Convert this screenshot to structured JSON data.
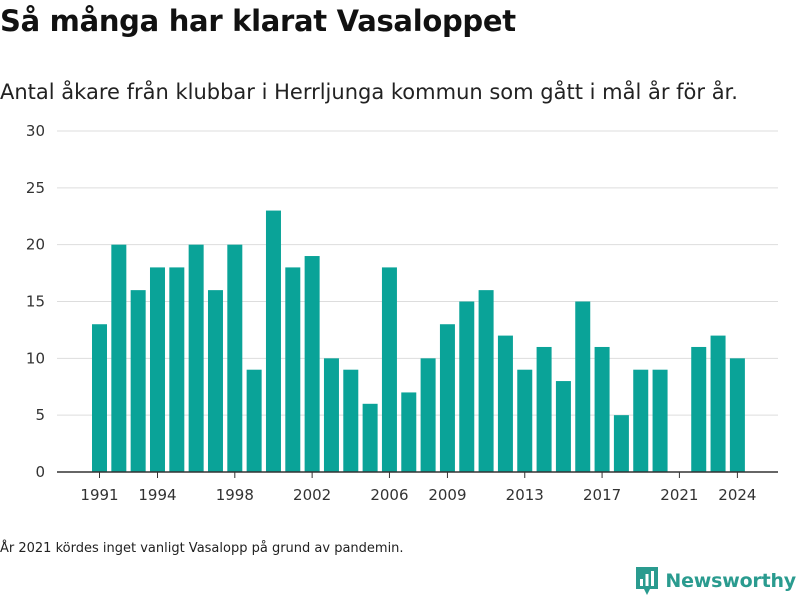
{
  "header": {
    "title": "Så många har klarat Vasaloppet",
    "subtitle": "Antal åkare från klubbar i Herrljunga kommun som gått i mål år för år."
  },
  "footnote": "År 2021 kördes inget vanligt Vasalopp på grund av pandemin.",
  "brand": {
    "name": "Newsworthy",
    "icon": "newsworthy-logo-icon",
    "color": "#2a9b8f"
  },
  "colors": {
    "bar": "#0aa398",
    "grid": "#dddddd",
    "axis": "#333333"
  },
  "chart_data": {
    "type": "bar",
    "title": "Så många har klarat Vasaloppet",
    "subtitle": "Antal åkare från klubbar i Herrljunga kommun som gått i mål år för år.",
    "xlabel": "",
    "ylabel": "",
    "ylim": [
      0,
      30
    ],
    "yticks": [
      0,
      5,
      10,
      15,
      20,
      25,
      30
    ],
    "xticks": [
      1991,
      1994,
      1998,
      2002,
      2006,
      2009,
      2013,
      2017,
      2021,
      2024
    ],
    "grid": true,
    "legend": "none",
    "categories": [
      1991,
      1992,
      1993,
      1994,
      1995,
      1996,
      1997,
      1998,
      1999,
      2000,
      2001,
      2002,
      2003,
      2004,
      2005,
      2006,
      2007,
      2008,
      2009,
      2010,
      2011,
      2012,
      2013,
      2014,
      2015,
      2016,
      2017,
      2018,
      2019,
      2020,
      2021,
      2022,
      2023,
      2024
    ],
    "values": [
      13,
      20,
      16,
      18,
      18,
      20,
      16,
      20,
      9,
      23,
      18,
      19,
      10,
      9,
      6,
      18,
      7,
      10,
      13,
      15,
      16,
      12,
      9,
      11,
      8,
      15,
      11,
      5,
      9,
      9,
      0,
      11,
      12,
      10
    ]
  }
}
